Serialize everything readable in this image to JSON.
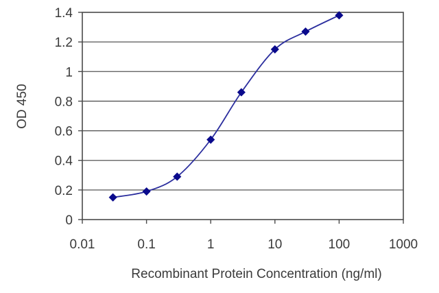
{
  "chart_data": {
    "type": "line",
    "xscale": "log",
    "xlabel": "Recombinant Protein Concentration (ng/ml)",
    "ylabel": "OD 450",
    "xlim": [
      0.01,
      1000
    ],
    "ylim": [
      0,
      1.4
    ],
    "xticks": [
      0.01,
      0.1,
      1,
      10,
      100,
      1000
    ],
    "xtick_labels": [
      "0.01",
      "0.1",
      "1",
      "10",
      "100",
      "1000"
    ],
    "yticks": [
      0,
      0.2,
      0.4,
      0.6,
      0.8,
      1,
      1.2,
      1.4
    ],
    "ytick_labels": [
      "0",
      "0.2",
      "0.4",
      "0.6",
      "0.8",
      "1",
      "1.2",
      "1.4"
    ],
    "grid": "horizontal",
    "series": [
      {
        "color": "#2b2e9e",
        "marker_color": "#0a0a8c",
        "x": [
          0.03,
          0.1,
          0.3,
          1,
          3,
          10,
          30,
          100
        ],
        "y": [
          0.15,
          0.19,
          0.29,
          0.54,
          0.86,
          1.15,
          1.27,
          1.38
        ]
      }
    ]
  }
}
